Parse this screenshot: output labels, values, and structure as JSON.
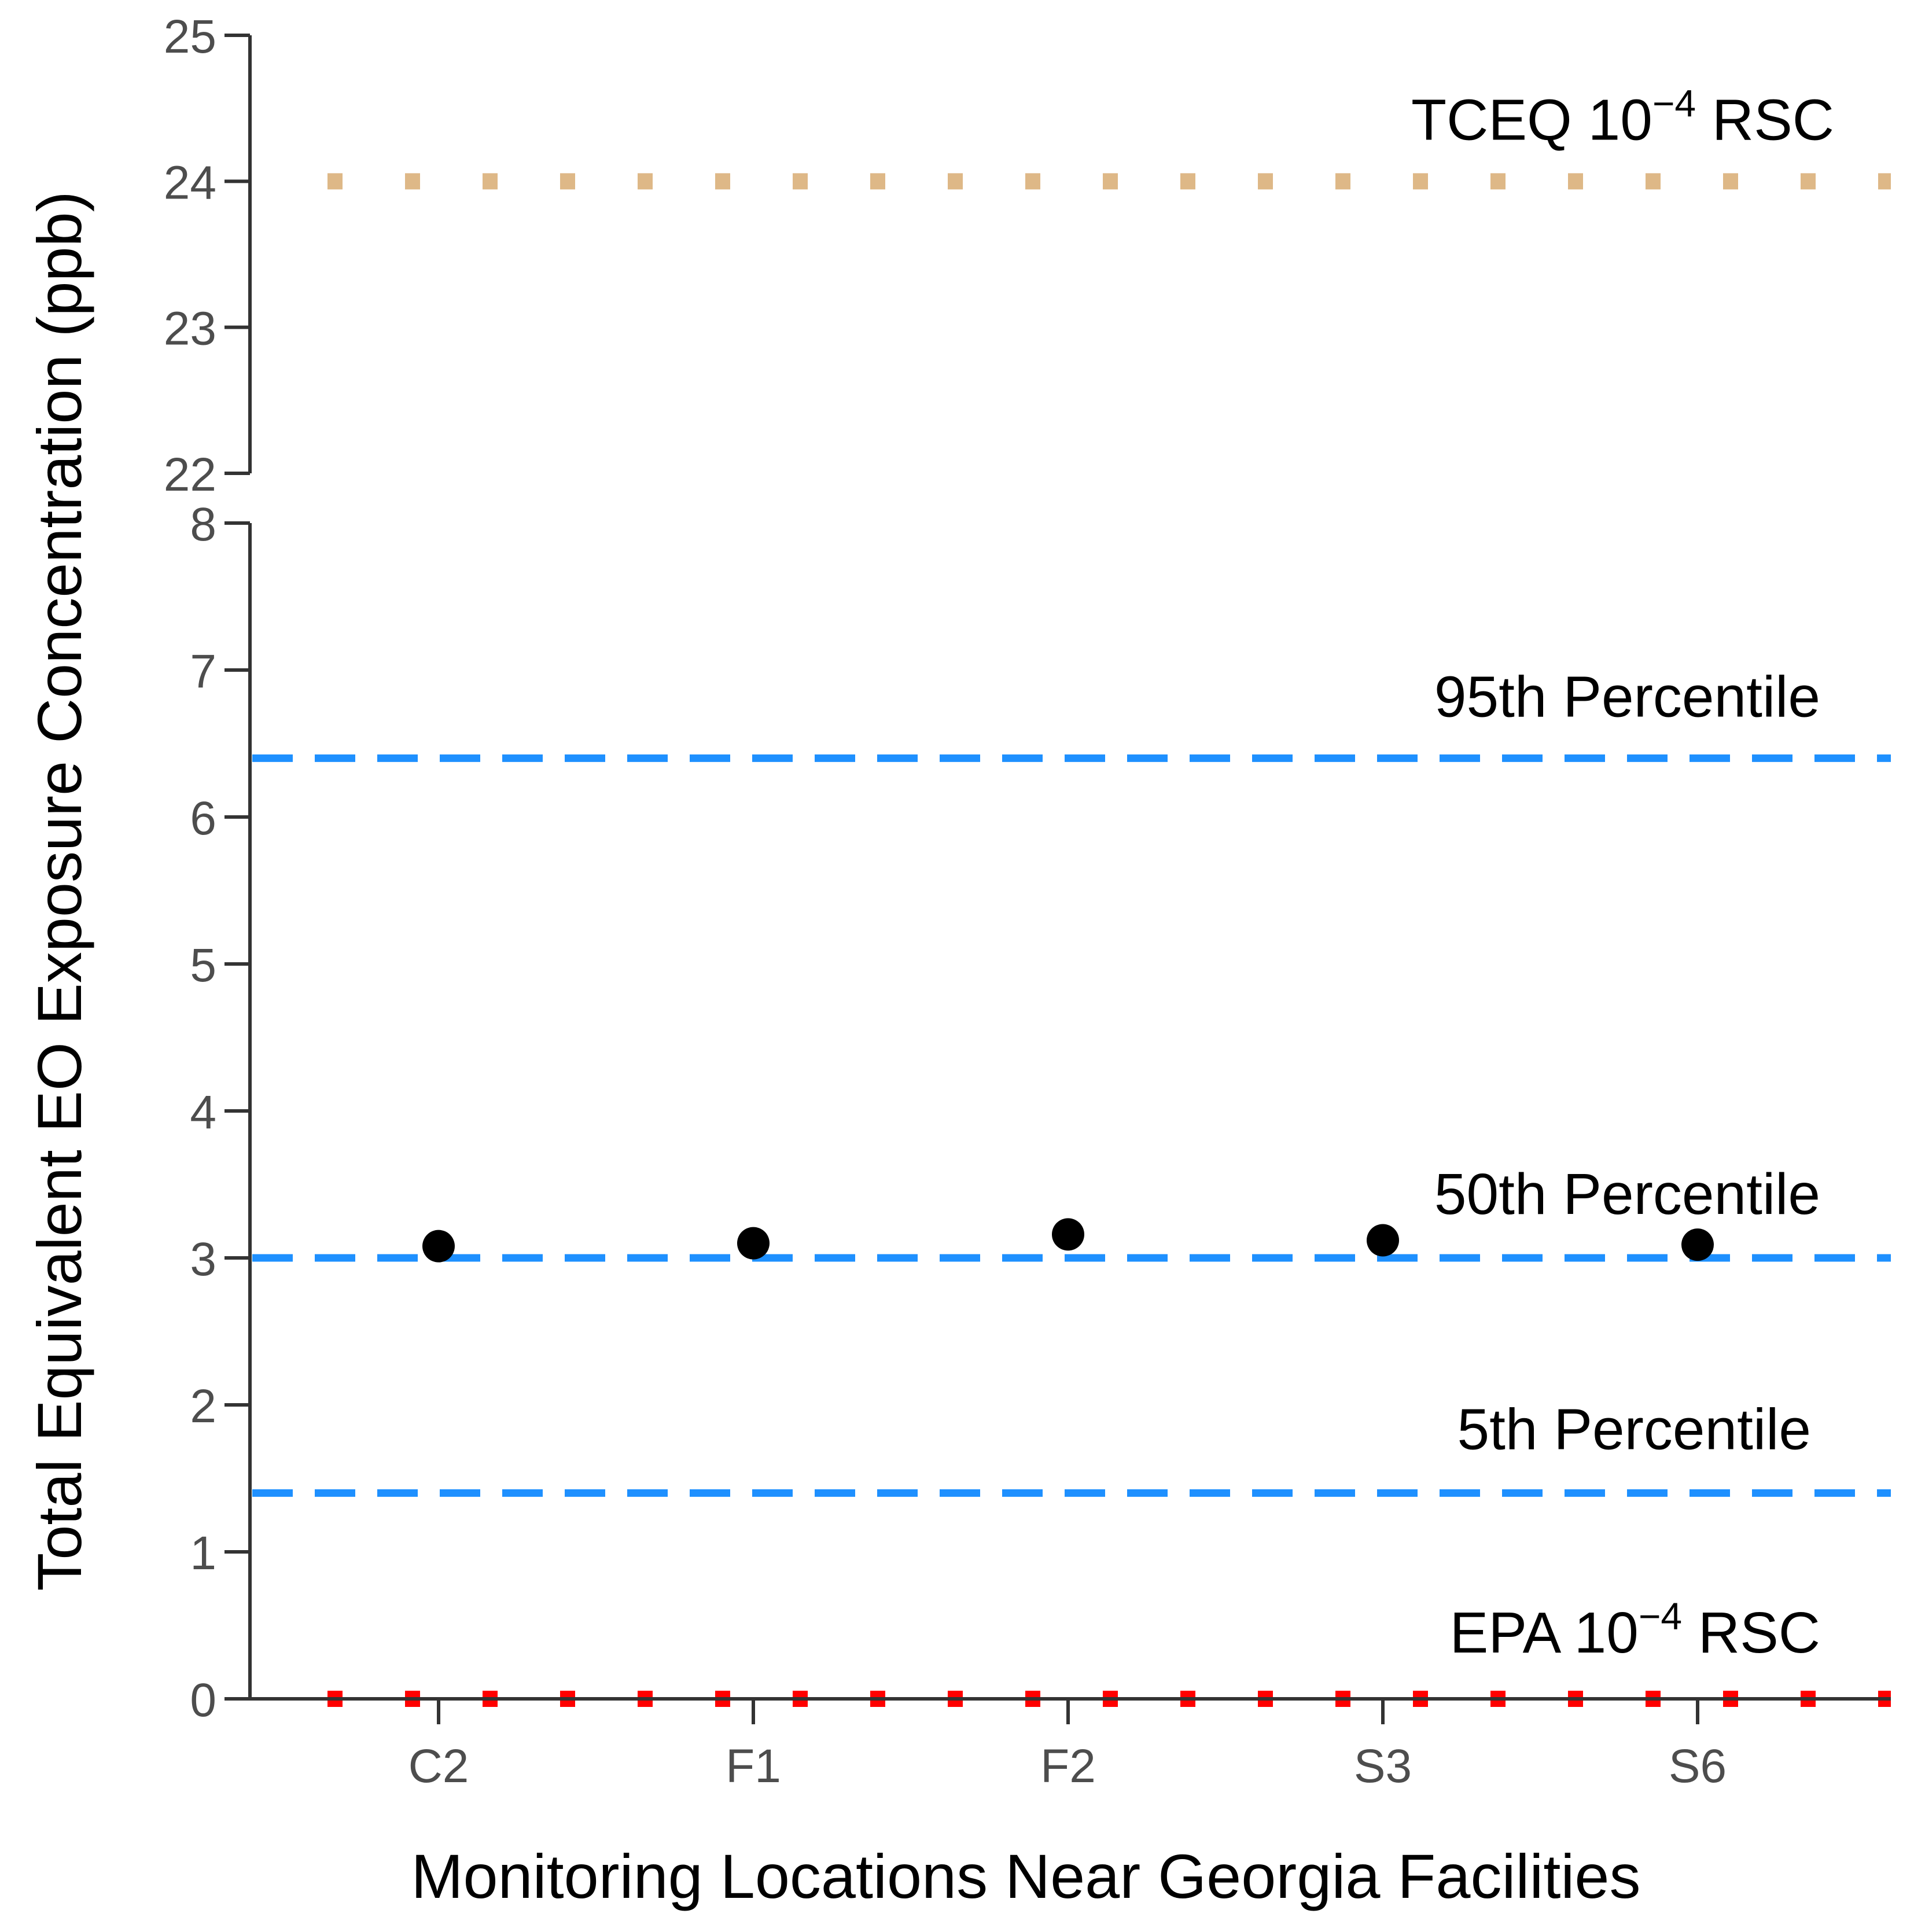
{
  "chart_data": {
    "type": "scatter",
    "xlabel": "Monitoring Locations Near Georgia Facilities",
    "ylabel": "Total Equivalent EO Exposure Concentration (ppb)",
    "categories": [
      "C2",
      "F1",
      "F2",
      "S3",
      "S6"
    ],
    "values": [
      3.08,
      3.1,
      3.16,
      3.12,
      3.09
    ],
    "point_color": "#000000",
    "panels": [
      {
        "name": "upper",
        "ylim": [
          22,
          25
        ],
        "ticks": [
          "22",
          "23",
          "24",
          "25"
        ],
        "tick_values": [
          22,
          23,
          24,
          25
        ]
      },
      {
        "name": "lower",
        "ylim": [
          0,
          8
        ],
        "ticks": [
          "0",
          "1",
          "2",
          "3",
          "4",
          "5",
          "6",
          "7",
          "8"
        ],
        "tick_values": [
          0,
          1,
          2,
          3,
          4,
          5,
          6,
          7,
          8
        ]
      }
    ],
    "reference_lines": [
      {
        "id": "tceq",
        "panel": "upper",
        "value": 24,
        "style": "dotted",
        "color": "#deb887",
        "label_base": "TCEQ 10",
        "label_sup": "−4",
        "label_tail": " RSC"
      },
      {
        "id": "p95",
        "panel": "lower",
        "value": 6.4,
        "style": "dashed",
        "color": "#1e90ff",
        "label_base": "95th Percentile",
        "label_sup": "",
        "label_tail": ""
      },
      {
        "id": "p50",
        "panel": "lower",
        "value": 3.0,
        "style": "dashed",
        "color": "#1e90ff",
        "label_base": "50th Percentile",
        "label_sup": "",
        "label_tail": ""
      },
      {
        "id": "p5",
        "panel": "lower",
        "value": 1.4,
        "style": "dashed",
        "color": "#1e90ff",
        "label_base": "5th Percentile",
        "label_sup": "",
        "label_tail": ""
      },
      {
        "id": "epa",
        "panel": "lower",
        "value": 0.0,
        "style": "dotted",
        "color": "#ff0000",
        "label_base": "EPA 10",
        "label_sup": "−4",
        "label_tail": " RSC"
      }
    ]
  }
}
